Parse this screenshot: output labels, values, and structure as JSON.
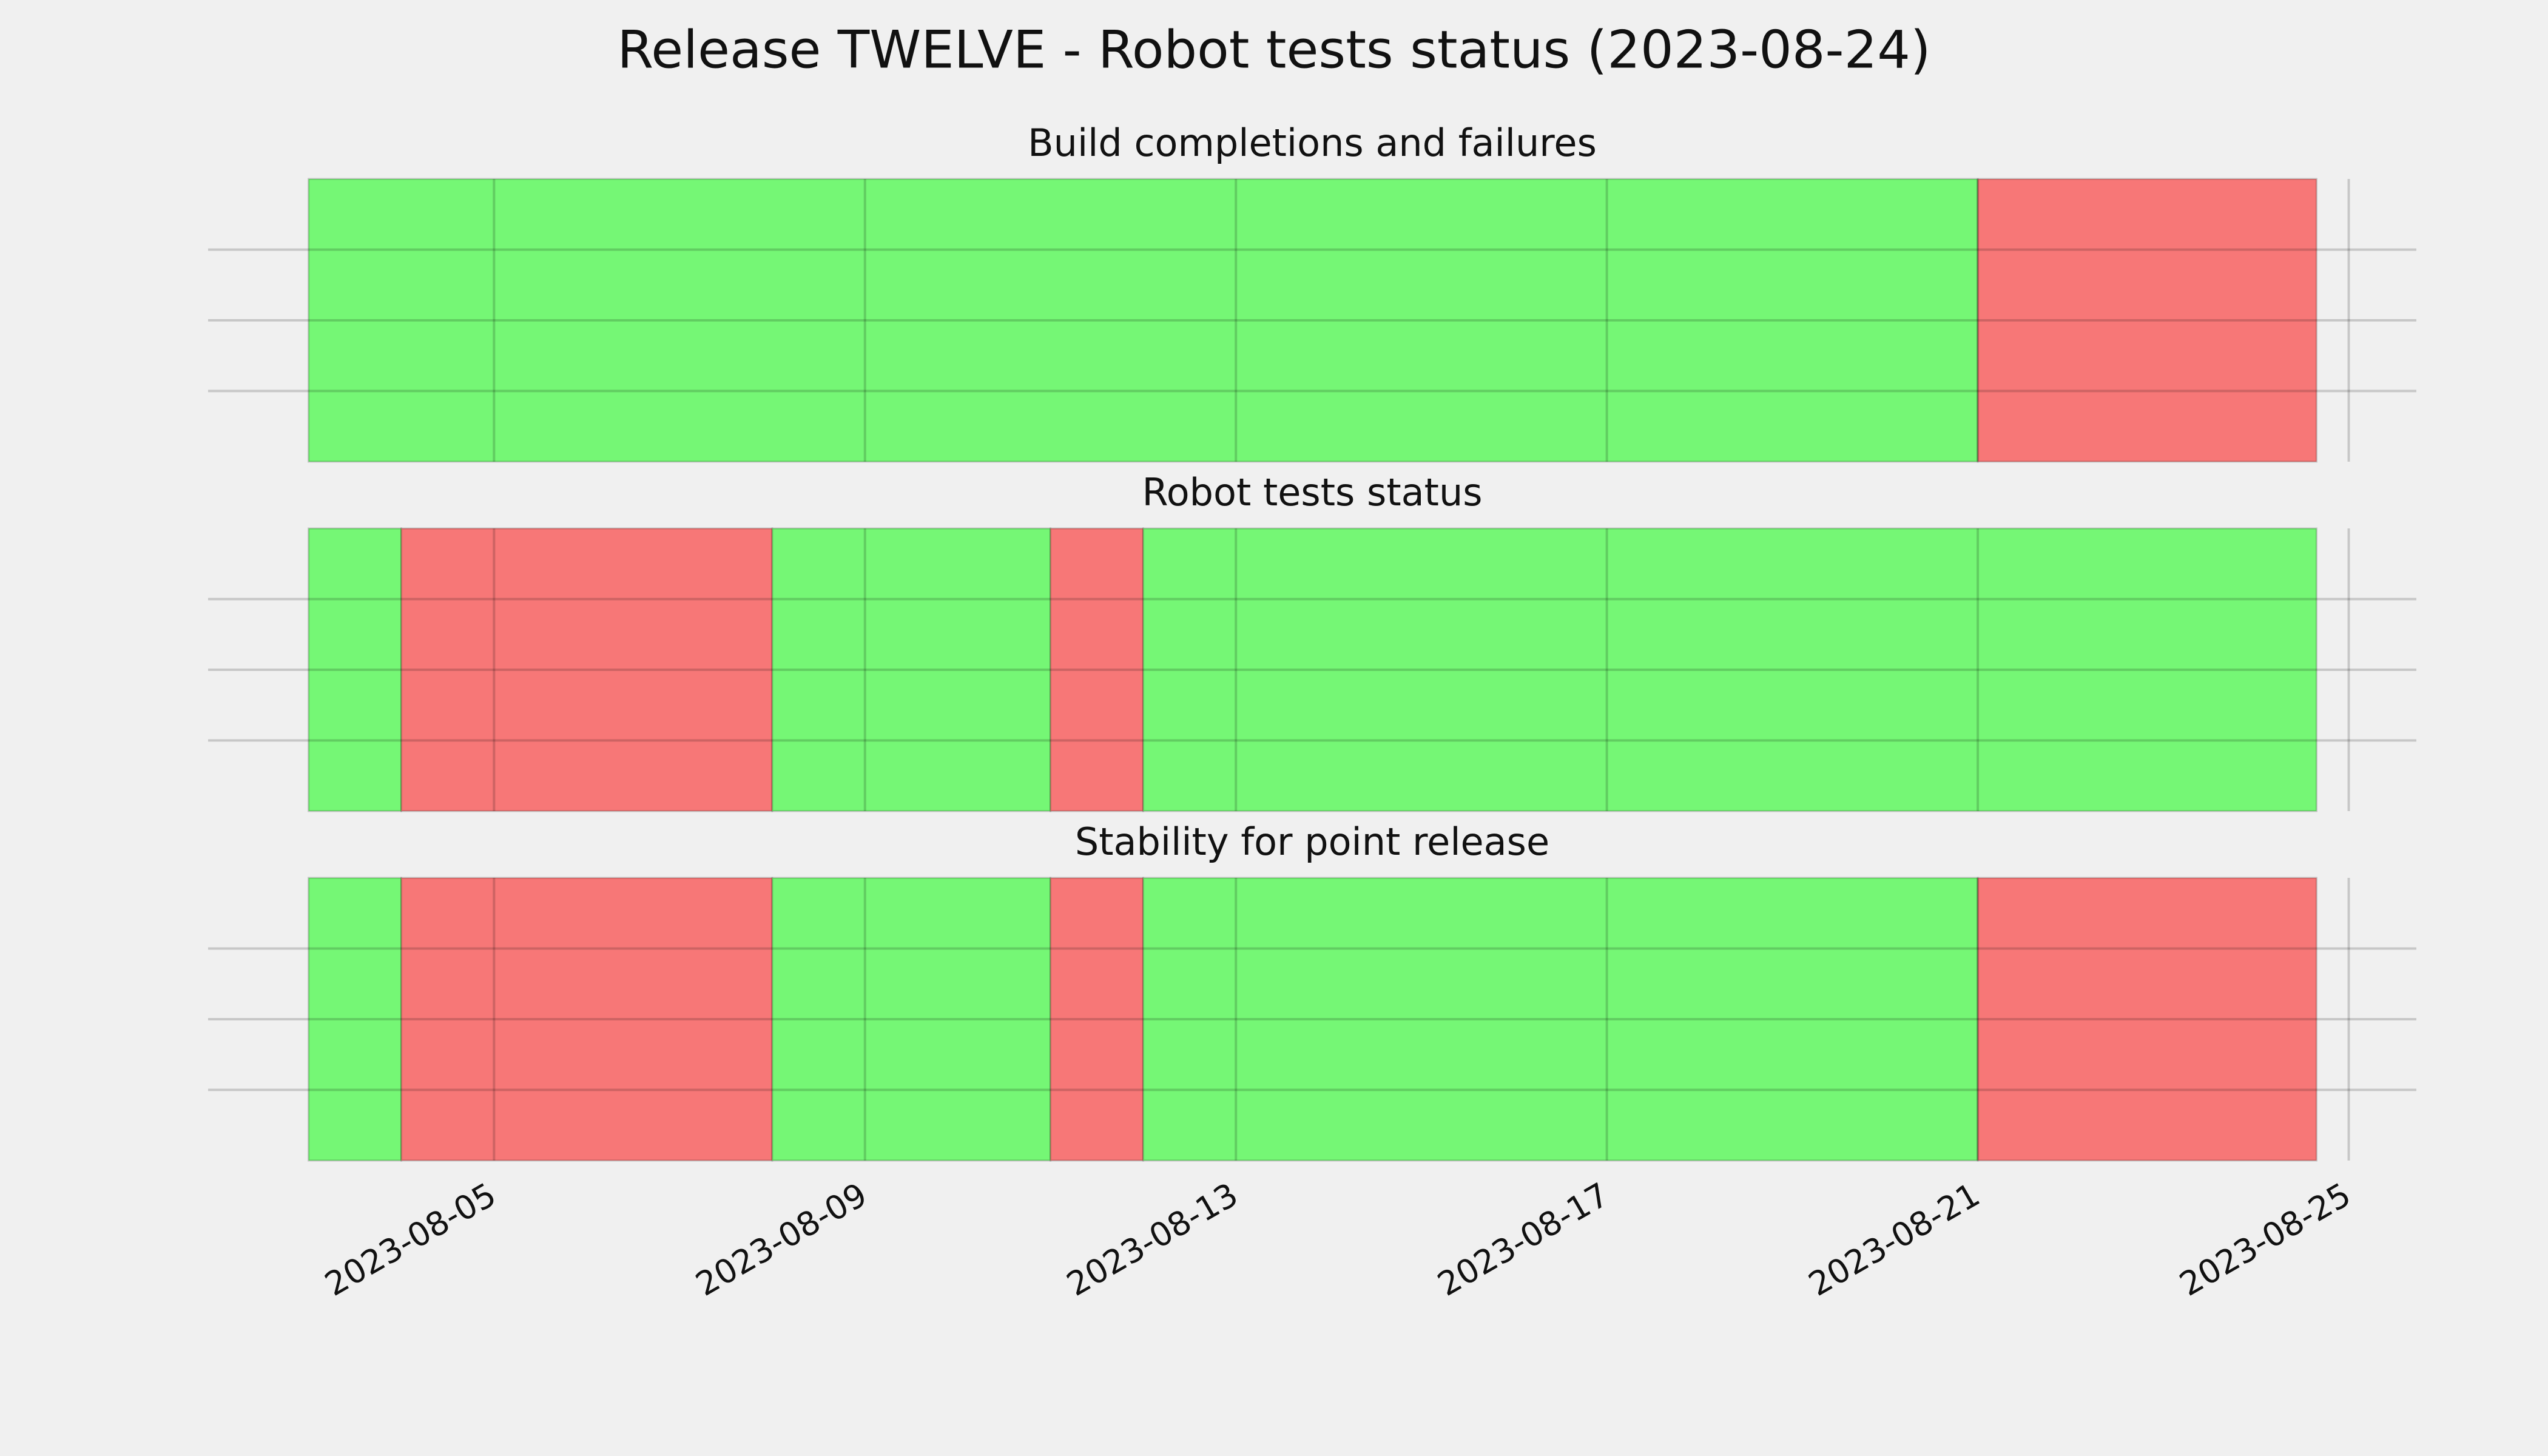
{
  "title": "Release TWELVE - Robot tests status (2023-08-24)",
  "chart_data": [
    {
      "type": "timeline",
      "title": "Build completions and failures",
      "xlim": [
        "2023-08-01T22:00",
        "2023-08-25T17:30"
      ],
      "xticks": [
        "2023-08-05",
        "2023-08-09",
        "2023-08-13",
        "2023-08-17",
        "2023-08-21",
        "2023-08-25"
      ],
      "ylim": [
        0,
        1
      ],
      "yticks": [
        0.25,
        0.5,
        0.75
      ],
      "grid": true,
      "show_xtick_labels": false,
      "segments": [
        {
          "start": "2023-08-03",
          "end": "2023-08-21",
          "color": "#75f775"
        },
        {
          "start": "2023-08-21",
          "end": "2023-08-24T15:40",
          "color": "#f77777"
        }
      ]
    },
    {
      "type": "timeline",
      "title": "Robot tests status",
      "xlim": [
        "2023-08-01T22:00",
        "2023-08-25T17:30"
      ],
      "xticks": [
        "2023-08-05",
        "2023-08-09",
        "2023-08-13",
        "2023-08-17",
        "2023-08-21",
        "2023-08-25"
      ],
      "ylim": [
        0,
        1
      ],
      "yticks": [
        0.25,
        0.5,
        0.75
      ],
      "grid": true,
      "show_xtick_labels": false,
      "segments": [
        {
          "start": "2023-08-03",
          "end": "2023-08-04",
          "color": "#75f775"
        },
        {
          "start": "2023-08-04",
          "end": "2023-08-08",
          "color": "#f77777"
        },
        {
          "start": "2023-08-08",
          "end": "2023-08-11",
          "color": "#75f775"
        },
        {
          "start": "2023-08-11",
          "end": "2023-08-12",
          "color": "#f77777"
        },
        {
          "start": "2023-08-12",
          "end": "2023-08-24T15:40",
          "color": "#75f775"
        }
      ]
    },
    {
      "type": "timeline",
      "title": "Stability for point release",
      "xlim": [
        "2023-08-01T22:00",
        "2023-08-25T17:30"
      ],
      "xticks": [
        "2023-08-05",
        "2023-08-09",
        "2023-08-13",
        "2023-08-17",
        "2023-08-21",
        "2023-08-25"
      ],
      "ylim": [
        0,
        1
      ],
      "yticks": [
        0.25,
        0.5,
        0.75
      ],
      "grid": true,
      "show_xtick_labels": true,
      "segments": [
        {
          "start": "2023-08-03",
          "end": "2023-08-04",
          "color": "#75f775"
        },
        {
          "start": "2023-08-04",
          "end": "2023-08-08",
          "color": "#f77777"
        },
        {
          "start": "2023-08-08",
          "end": "2023-08-11",
          "color": "#75f775"
        },
        {
          "start": "2023-08-11",
          "end": "2023-08-12",
          "color": "#f77777"
        },
        {
          "start": "2023-08-12",
          "end": "2023-08-21",
          "color": "#75f775"
        },
        {
          "start": "2023-08-21",
          "end": "2023-08-24T15:40",
          "color": "#f77777"
        }
      ]
    }
  ]
}
